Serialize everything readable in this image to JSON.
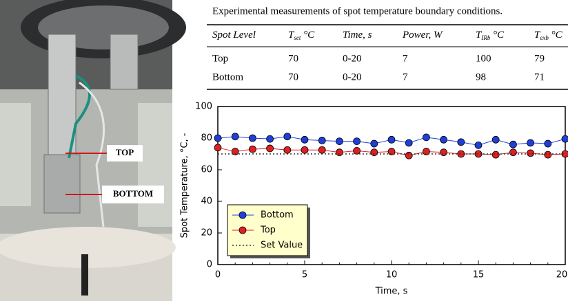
{
  "photo": {
    "labels": [
      "TOP",
      "BOTTOM"
    ]
  },
  "table": {
    "title": "Experimental measurements of spot temperature boundary conditions.",
    "headers": [
      {
        "main": "Spot Level"
      },
      {
        "main": "T",
        "sub": "set",
        "rest": " °C"
      },
      {
        "main": "Time, s"
      },
      {
        "main": "Power, W"
      },
      {
        "main": "T",
        "sub": "IRb",
        "rest": " °C"
      },
      {
        "main": "T",
        "sub": "exb",
        "rest": " °C"
      }
    ],
    "rows": [
      [
        "Top",
        70,
        "0-20",
        7,
        100,
        79
      ],
      [
        "Bottom",
        70,
        "0-20",
        7,
        98,
        71
      ]
    ]
  },
  "chart_data": {
    "type": "line",
    "xlabel": "Time, s",
    "ylabel": "Spot Temperature, °C, -",
    "x": [
      0,
      1,
      2,
      3,
      4,
      5,
      6,
      7,
      8,
      9,
      10,
      11,
      12,
      13,
      14,
      15,
      16,
      17,
      18,
      19,
      20
    ],
    "xlim": [
      0,
      20
    ],
    "xticks": [
      0,
      5,
      10,
      15,
      20
    ],
    "ylim": [
      0,
      100
    ],
    "yticks": [
      0,
      20,
      40,
      60,
      80,
      100
    ],
    "series": [
      {
        "name": "Bottom",
        "color": "#1f3fd8",
        "marker": true,
        "values": [
          80,
          81,
          80,
          79.5,
          81,
          79,
          78.5,
          78,
          78,
          76.5,
          79,
          77,
          80.5,
          79,
          77.5,
          75.5,
          79,
          76,
          77,
          76.5,
          79.5
        ]
      },
      {
        "name": "Top",
        "color": "#e02020",
        "marker": true,
        "values": [
          74,
          71.5,
          73,
          73.5,
          72.5,
          72.5,
          72.5,
          71,
          72,
          71,
          71.5,
          69,
          71.5,
          71,
          70,
          70,
          69.5,
          71,
          70.5,
          69.5,
          70
        ]
      },
      {
        "name": "Set Value",
        "color": "#333333",
        "marker": false,
        "dotted": true,
        "values": [
          70,
          70,
          70,
          70,
          70,
          70,
          70,
          70,
          70,
          70,
          70,
          70,
          70,
          70,
          70,
          70,
          70,
          70,
          70,
          70,
          70
        ]
      }
    ]
  }
}
